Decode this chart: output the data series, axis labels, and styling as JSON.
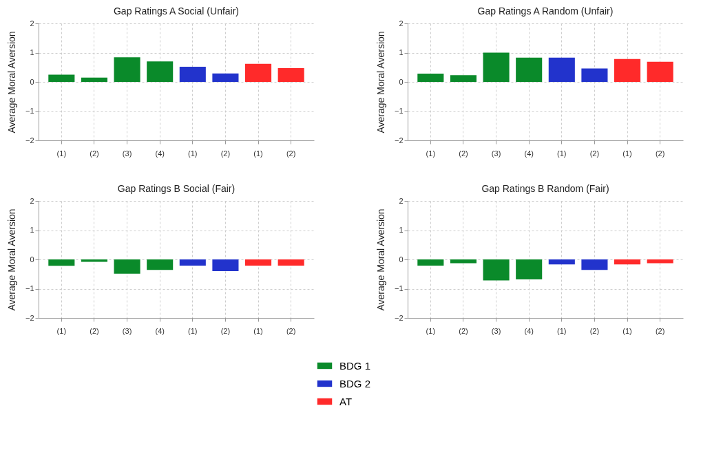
{
  "chart_data": [
    {
      "type": "bar",
      "title": "Gap Ratings A Social (Unfair)",
      "ylabel": "Average Moral Aversion",
      "categories": [
        "(1)",
        "(2)",
        "(3)",
        "(4)",
        "(1)",
        "(2)",
        "(1)",
        "(2)"
      ],
      "ylim": [
        -2,
        2
      ],
      "yticks": [
        -2,
        -1,
        0,
        1,
        2
      ],
      "grid": true,
      "legend": "bottom",
      "series": [
        {
          "name": "BDG 1",
          "color": "#0a8a2a",
          "values": [
            0.25,
            0.15,
            0.84,
            0.7,
            null,
            null,
            null,
            null
          ]
        },
        {
          "name": "BDG 2",
          "color": "#2233cc",
          "values": [
            null,
            null,
            null,
            null,
            0.52,
            0.29,
            null,
            null
          ]
        },
        {
          "name": "AT",
          "color": "#ff2a2a",
          "values": [
            null,
            null,
            null,
            null,
            null,
            null,
            0.62,
            0.47
          ]
        }
      ]
    },
    {
      "type": "bar",
      "title": "Gap Ratings A Random   (Unfair)",
      "ylabel": "Average Moral Aversion",
      "categories": [
        "(1)",
        "(2)",
        "(3)",
        "(4)",
        "(1)",
        "(2)",
        "(1)",
        "(2)"
      ],
      "ylim": [
        -2,
        2
      ],
      "yticks": [
        -2,
        -1,
        0,
        1,
        2
      ],
      "grid": true,
      "legend": "bottom",
      "series": [
        {
          "name": "BDG 1",
          "color": "#0a8a2a",
          "values": [
            0.28,
            0.23,
            1.0,
            0.83,
            null,
            null,
            null,
            null
          ]
        },
        {
          "name": "BDG 2",
          "color": "#2233cc",
          "values": [
            null,
            null,
            null,
            null,
            0.83,
            0.46,
            null,
            null
          ]
        },
        {
          "name": "AT",
          "color": "#ff2a2a",
          "values": [
            null,
            null,
            null,
            null,
            null,
            null,
            0.78,
            0.69
          ]
        }
      ]
    },
    {
      "type": "bar",
      "title": "Gap Ratings B Social (Fair)",
      "ylabel": "Average Moral Aversion",
      "categories": [
        "(1)",
        "(2)",
        "(3)",
        "(4)",
        "(1)",
        "(2)",
        "(1)",
        "(2)"
      ],
      "ylim": [
        -2,
        2
      ],
      "yticks": [
        -2,
        -1,
        0,
        1,
        2
      ],
      "grid": true,
      "legend": "bottom",
      "series": [
        {
          "name": "BDG 1",
          "color": "#0a8a2a",
          "values": [
            -0.22,
            -0.08,
            -0.49,
            -0.36,
            null,
            null,
            null,
            null
          ]
        },
        {
          "name": "BDG 2",
          "color": "#2233cc",
          "values": [
            null,
            null,
            null,
            null,
            -0.21,
            -0.4,
            null,
            null
          ]
        },
        {
          "name": "AT",
          "color": "#ff2a2a",
          "values": [
            null,
            null,
            null,
            null,
            null,
            null,
            -0.21,
            -0.21
          ]
        }
      ]
    },
    {
      "type": "bar",
      "title": "Gap Ratings B Random (Fair)",
      "ylabel": "Average Moral Aversion",
      "categories": [
        "(1)",
        "(2)",
        "(3)",
        "(4)",
        "(1)",
        "(2)",
        "(1)",
        "(2)"
      ],
      "ylim": [
        -2,
        2
      ],
      "yticks": [
        -2,
        -1,
        0,
        1,
        2
      ],
      "grid": true,
      "legend": "bottom",
      "series": [
        {
          "name": "BDG 1",
          "color": "#0a8a2a",
          "values": [
            -0.21,
            -0.13,
            -0.72,
            -0.68,
            null,
            null,
            null,
            null
          ]
        },
        {
          "name": "BDG 2",
          "color": "#2233cc",
          "values": [
            null,
            null,
            null,
            null,
            -0.17,
            -0.36,
            null,
            null
          ]
        },
        {
          "name": "AT",
          "color": "#ff2a2a",
          "values": [
            null,
            null,
            null,
            null,
            null,
            null,
            -0.17,
            -0.13
          ]
        }
      ]
    }
  ]
}
